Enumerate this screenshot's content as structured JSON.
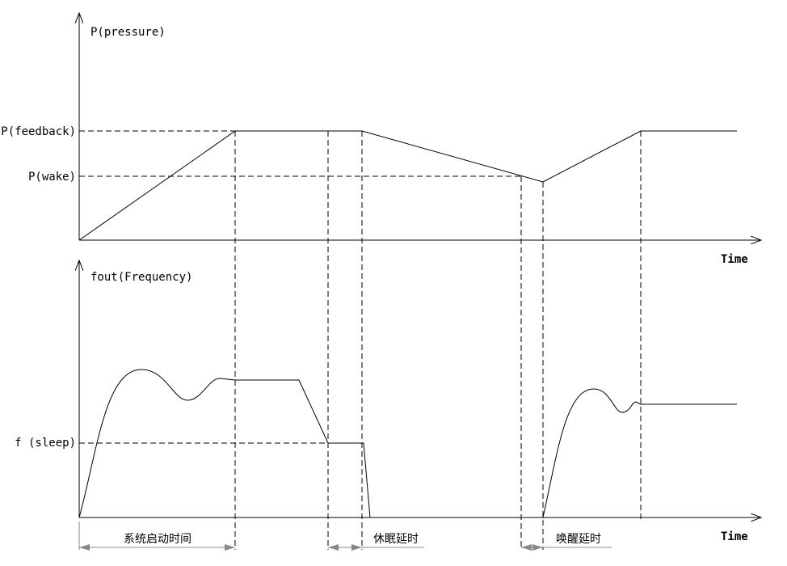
{
  "top_axis": {
    "y_label": "P(pressure)",
    "x_label": "Time",
    "levels": [
      "P(feedback)",
      "P(wake)"
    ]
  },
  "bottom_axis": {
    "y_label": "fout(Frequency)",
    "x_label": "Time",
    "levels": [
      "f (sleep)"
    ]
  },
  "intervals": [
    "系统启动时间",
    "休眠延时",
    "唤醒延时"
  ]
}
